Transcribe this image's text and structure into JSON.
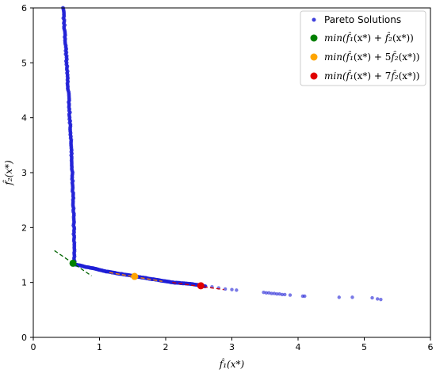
{
  "chart_data": {
    "type": "scatter",
    "xlabel": "f̂₁(x*)",
    "ylabel": "f̂₂(x*)",
    "xlim": [
      0,
      6
    ],
    "ylim": [
      0,
      6
    ],
    "x_ticks": [
      0,
      1,
      2,
      3,
      4,
      5,
      6
    ],
    "y_ticks": [
      0,
      1,
      2,
      3,
      4,
      5,
      6
    ],
    "grid": false,
    "legend_position": "top-right",
    "colors": {
      "pareto": "#1f1fd6",
      "green": "#008000",
      "orange": "#ffa500",
      "red": "#e00000",
      "green_line": "#006400",
      "orange_line": "#ff8c00",
      "red_line": "#d40000"
    },
    "series": [
      {
        "name": "Pareto Solutions",
        "marker": "dot",
        "vertical_branch": {
          "x_from": 0.45,
          "x_to": 0.62,
          "y_from": 1.35,
          "y_to": 6.0
        },
        "dense_curve": [
          [
            0.6,
            1.35
          ],
          [
            0.62,
            1.33
          ],
          [
            0.7,
            1.31
          ],
          [
            0.8,
            1.28
          ],
          [
            0.9,
            1.26
          ],
          [
            1.0,
            1.23
          ],
          [
            1.1,
            1.2
          ],
          [
            1.2,
            1.18
          ],
          [
            1.3,
            1.16
          ],
          [
            1.4,
            1.14
          ],
          [
            1.5,
            1.12
          ],
          [
            1.6,
            1.1
          ],
          [
            1.7,
            1.08
          ],
          [
            1.8,
            1.06
          ],
          [
            1.9,
            1.04
          ],
          [
            2.0,
            1.02
          ],
          [
            2.1,
            1.0
          ],
          [
            2.2,
            0.99
          ],
          [
            2.3,
            0.98
          ],
          [
            2.4,
            0.97
          ],
          [
            2.5,
            0.95
          ],
          [
            2.6,
            0.93
          ]
        ],
        "sparse_points": [
          [
            2.7,
            0.92
          ],
          [
            2.8,
            0.9
          ],
          [
            2.9,
            0.88
          ],
          [
            3.0,
            0.87
          ],
          [
            3.07,
            0.86
          ],
          [
            3.48,
            0.82
          ],
          [
            3.52,
            0.81
          ],
          [
            3.56,
            0.81
          ],
          [
            3.6,
            0.8
          ],
          [
            3.64,
            0.8
          ],
          [
            3.68,
            0.79
          ],
          [
            3.72,
            0.79
          ],
          [
            3.76,
            0.78
          ],
          [
            3.8,
            0.78
          ],
          [
            3.88,
            0.77
          ],
          [
            4.07,
            0.75
          ],
          [
            4.1,
            0.75
          ],
          [
            4.62,
            0.73
          ],
          [
            4.82,
            0.73
          ],
          [
            5.12,
            0.72
          ],
          [
            5.2,
            0.7
          ],
          [
            5.25,
            0.69
          ]
        ]
      },
      {
        "name": "min(f̂₁(x*) + f̂₂(x*))",
        "legend_parts": [
          "min(",
          "f̂₁",
          "(x*) + ",
          "f̂₂",
          "(x*))"
        ],
        "point": [
          0.6,
          1.35
        ],
        "tangent": [
          [
            0.32,
            1.58
          ],
          [
            0.88,
            1.12
          ]
        ]
      },
      {
        "name": "min(f̂₁(x*) + 5f̂₂(x*))",
        "legend_parts": [
          "min(",
          "f̂₁",
          "(x*) + 5",
          "f̂₂",
          "(x*))"
        ],
        "point": [
          1.53,
          1.11
        ],
        "tangent": [
          [
            1.15,
            1.18
          ],
          [
            1.95,
            1.02
          ]
        ]
      },
      {
        "name": "min(f̂₁(x*) + 7f̂₂(x*))",
        "legend_parts": [
          "min(",
          "f̂₁",
          "(x*) + 7",
          "f̂₂",
          "(x*))"
        ],
        "point": [
          2.53,
          0.94
        ],
        "tangent": [
          [
            2.1,
            1.0
          ],
          [
            2.88,
            0.87
          ]
        ]
      }
    ]
  }
}
